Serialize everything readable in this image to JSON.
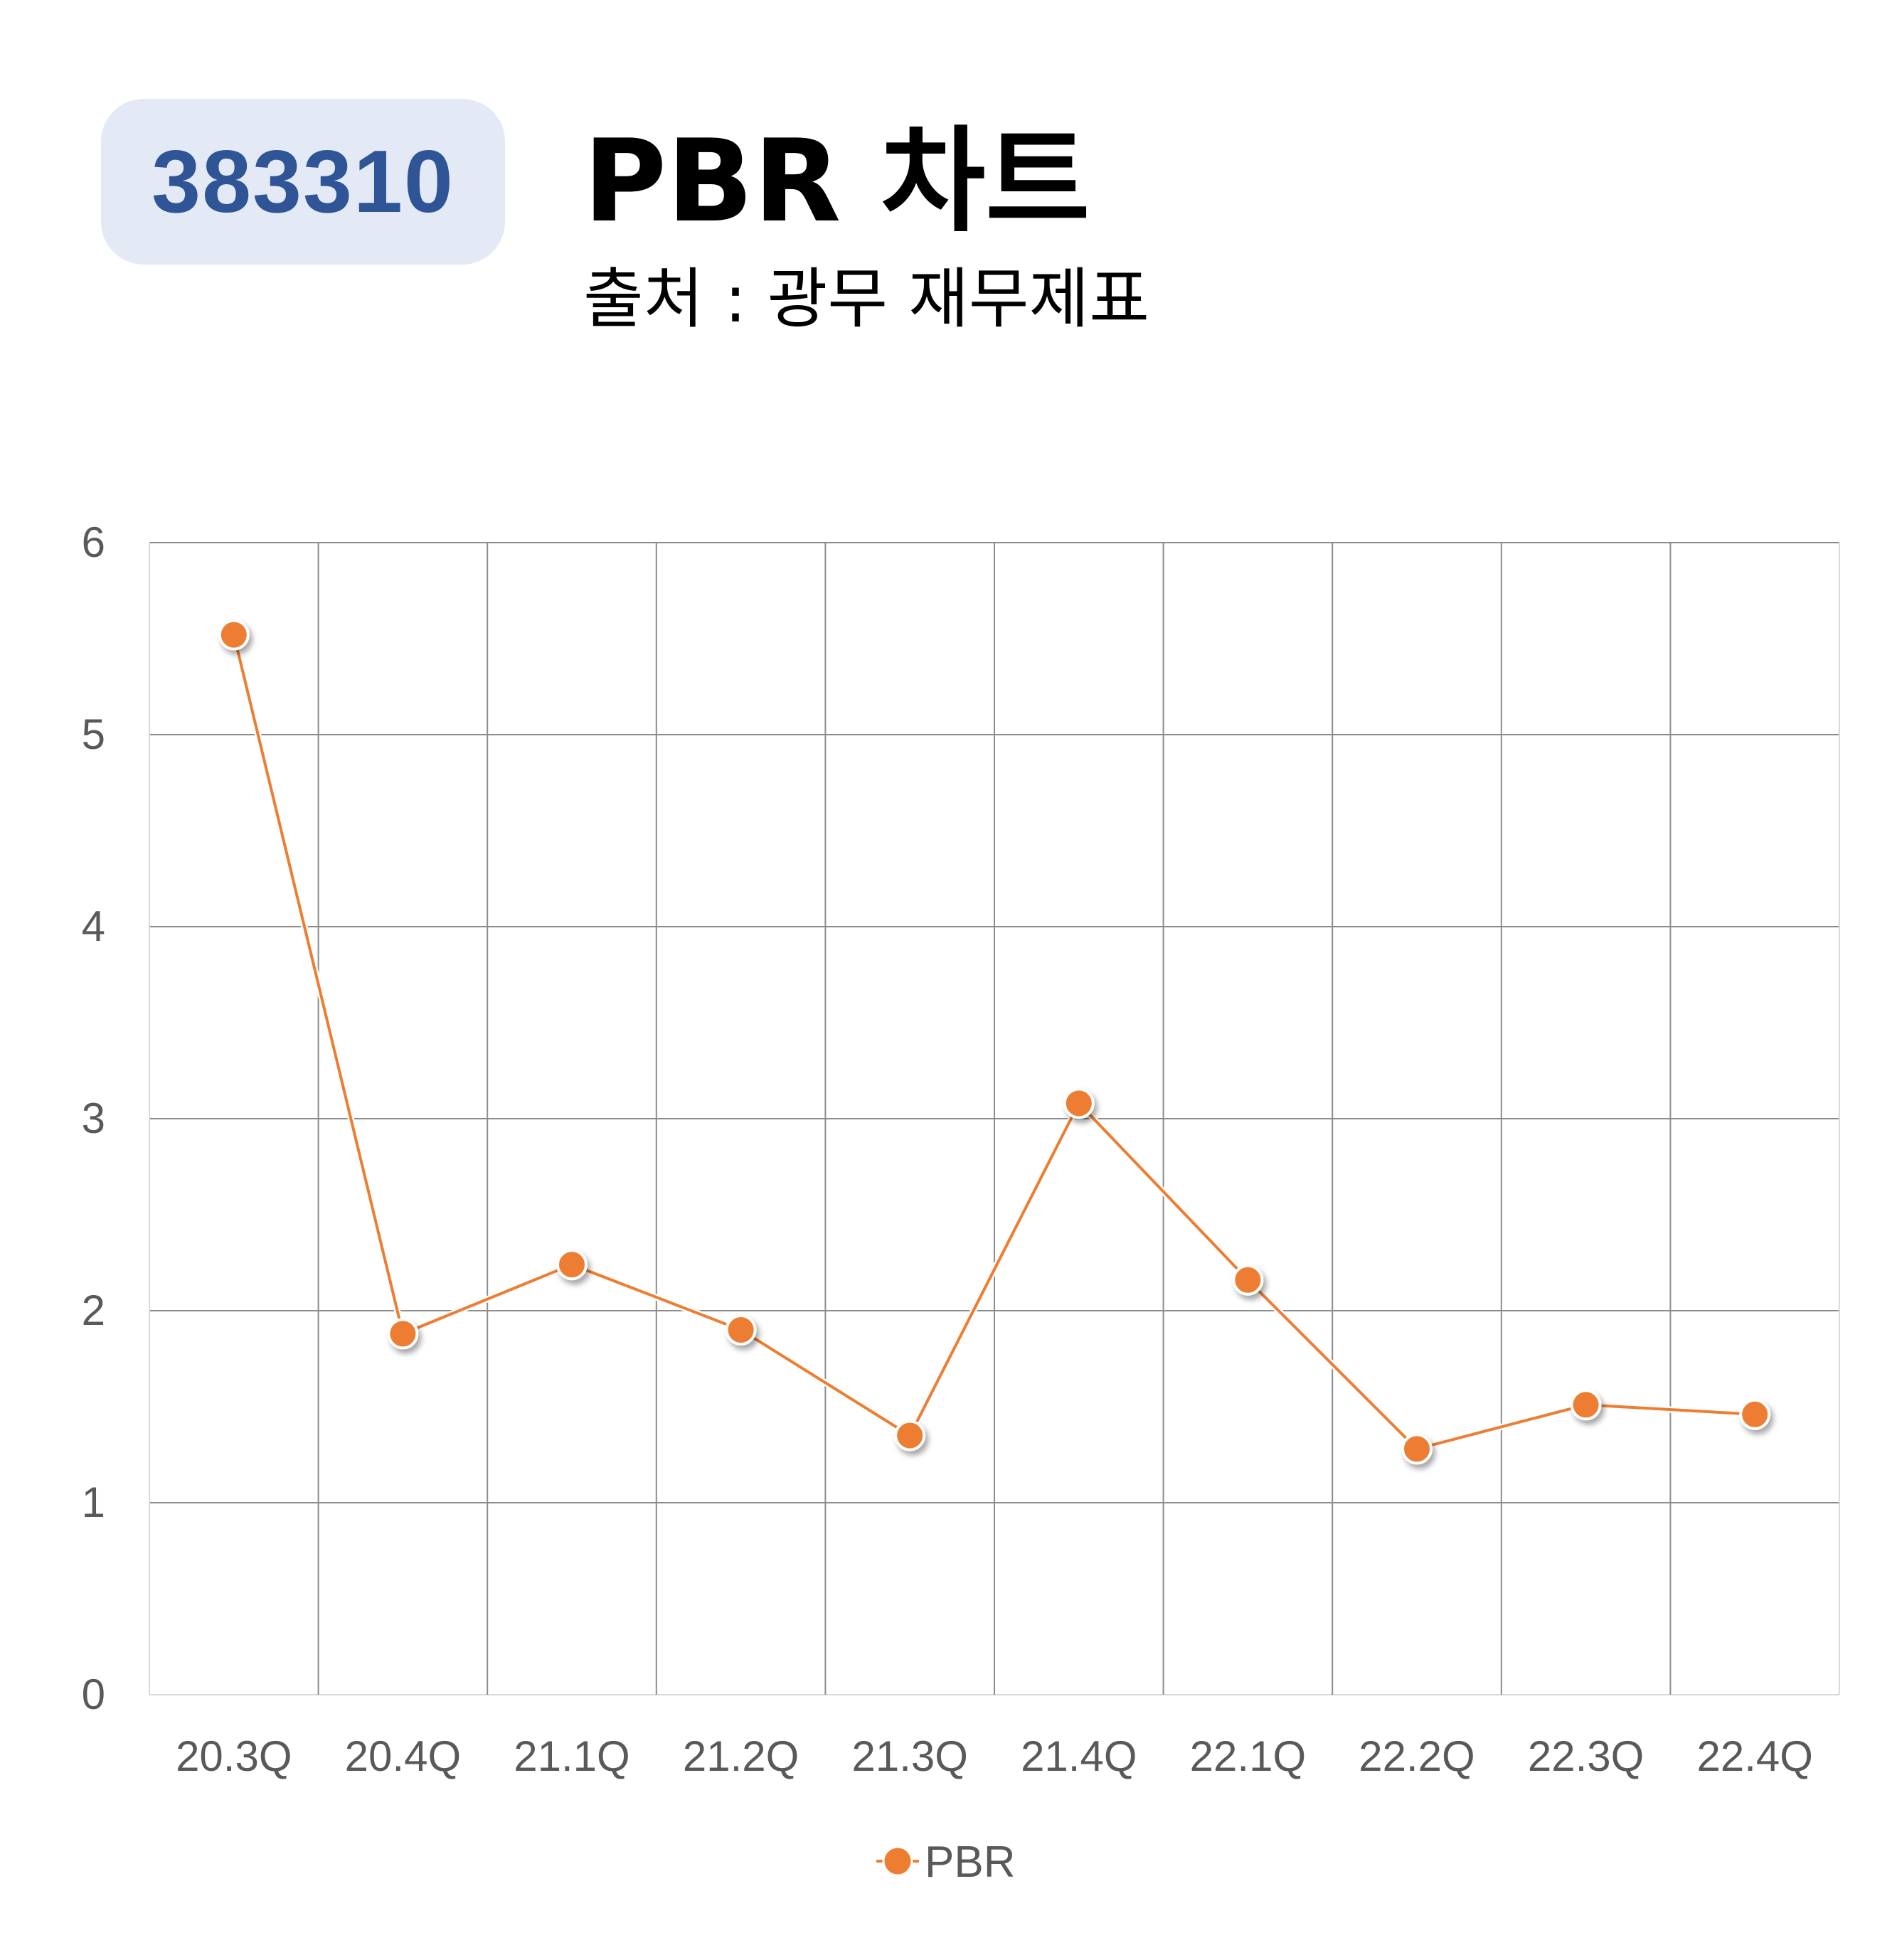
{
  "header": {
    "code": "383310",
    "title": "PBR 차트",
    "source": "출처 : 광무 재무제표"
  },
  "colors": {
    "series": "#ed7d31",
    "badge_bg": "#e3e9f5",
    "badge_text": "#2f5597",
    "grid": "#8c8c8c"
  },
  "chart_data": {
    "type": "line",
    "categories": [
      "20.3Q",
      "20.4Q",
      "21.1Q",
      "21.2Q",
      "21.3Q",
      "21.4Q",
      "22.1Q",
      "22.2Q",
      "22.3Q",
      "22.4Q"
    ],
    "series": [
      {
        "name": "PBR",
        "values": [
          5.52,
          1.88,
          2.24,
          1.9,
          1.35,
          3.08,
          2.16,
          1.28,
          1.51,
          1.46
        ]
      }
    ],
    "yticks": [
      "0",
      "1",
      "2",
      "3",
      "4",
      "5",
      "6"
    ],
    "ylim": [
      0,
      6
    ],
    "grid": true,
    "legend": "bottom-center"
  }
}
